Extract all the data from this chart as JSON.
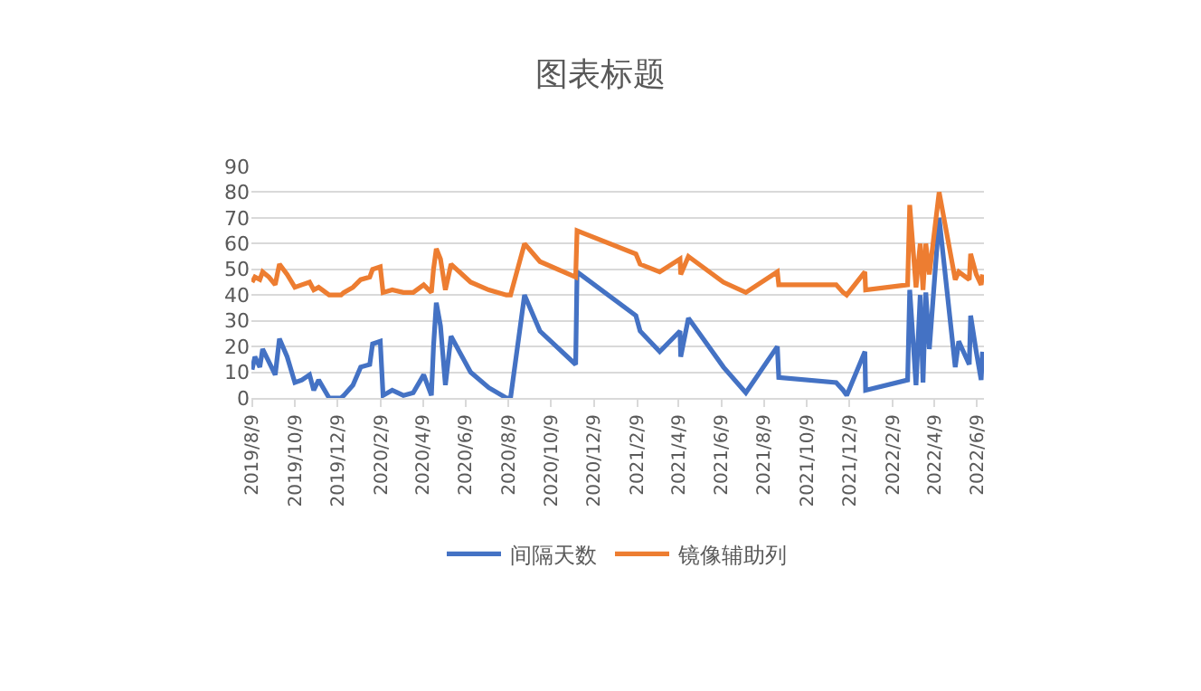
{
  "chart_data": {
    "type": "line",
    "title": "图表标题",
    "x": [
      "2019-08-09",
      "2019-08-13",
      "2019-08-20",
      "2019-08-24",
      "2019-09-02",
      "2019-09-11",
      "2019-09-17",
      "2019-09-28",
      "2019-10-09",
      "2019-10-19",
      "2019-10-30",
      "2019-11-05",
      "2019-11-12",
      "2019-11-27",
      "2019-12-14",
      "2019-12-18",
      "2019-12-31",
      "2020-01-11",
      "2020-01-24",
      "2020-01-28",
      "2020-02-08",
      "2020-02-12",
      "2020-02-25",
      "2020-03-12",
      "2020-03-26",
      "2020-04-10",
      "2020-04-21",
      "2020-04-24",
      "2020-04-28",
      "2020-05-04",
      "2020-05-11",
      "2020-05-19",
      "2020-06-16",
      "2020-07-12",
      "2020-08-06",
      "2020-08-12",
      "2020-09-01",
      "2020-09-23",
      "2020-11-13",
      "2020-11-15",
      "2021-02-07",
      "2021-02-13",
      "2021-03-13",
      "2021-04-11",
      "2021-04-12",
      "2021-04-23",
      "2021-06-12",
      "2021-07-14",
      "2021-08-28",
      "2021-08-30",
      "2021-11-20",
      "2021-11-30",
      "2021-12-05",
      "2021-12-31",
      "2022-01-01",
      "2022-03-02",
      "2022-03-05",
      "2022-03-14",
      "2022-03-20",
      "2022-03-24",
      "2022-03-28",
      "2022-04-02",
      "2022-04-16",
      "2022-05-09",
      "2022-05-14",
      "2022-05-29",
      "2022-05-31",
      "2022-06-08",
      "2022-06-15",
      "2022-06-17"
    ],
    "series": [
      {
        "name": "间隔天数",
        "color": "#4472c4",
        "values": [
          11,
          16,
          12,
          19,
          14,
          9,
          23,
          16,
          6,
          7,
          9,
          3,
          7,
          0,
          0,
          1,
          5,
          12,
          13,
          21,
          22,
          1,
          3,
          1,
          2,
          9,
          1,
          20,
          37,
          28,
          5,
          24,
          10,
          4,
          0,
          0,
          40,
          26,
          13,
          49,
          32,
          26,
          18,
          26,
          16,
          31,
          12,
          2,
          20,
          8,
          6,
          3,
          1,
          18,
          3,
          7,
          42,
          5,
          40,
          6,
          41,
          19,
          70,
          12,
          22,
          13,
          32,
          18,
          7,
          18
        ]
      },
      {
        "name": "镜像辅助列",
        "color": "#ed7d31",
        "values": [
          45,
          47,
          46,
          49,
          47,
          44,
          52,
          48,
          43,
          44,
          45,
          42,
          43,
          40,
          40,
          41,
          43,
          46,
          47,
          50,
          51,
          41,
          42,
          41,
          41,
          44,
          41,
          50,
          58,
          54,
          42,
          52,
          45,
          42,
          40,
          40,
          60,
          53,
          47,
          65,
          56,
          52,
          49,
          54,
          48,
          55,
          45,
          41,
          49,
          44,
          44,
          41,
          40,
          49,
          42,
          44,
          75,
          43,
          60,
          42,
          60,
          48,
          80,
          46,
          49,
          46,
          56,
          48,
          44,
          48
        ]
      }
    ],
    "xlim": [
      "2019-08-08",
      "2022-06-19"
    ],
    "xticks": [
      {
        "value": "2019-08-09",
        "label": "2019/8/9"
      },
      {
        "value": "2019-10-09",
        "label": "2019/10/9"
      },
      {
        "value": "2019-12-09",
        "label": "2019/12/9"
      },
      {
        "value": "2020-02-09",
        "label": "2020/2/9"
      },
      {
        "value": "2020-04-09",
        "label": "2020/4/9"
      },
      {
        "value": "2020-06-09",
        "label": "2020/6/9"
      },
      {
        "value": "2020-08-09",
        "label": "2020/8/9"
      },
      {
        "value": "2020-10-09",
        "label": "2020/10/9"
      },
      {
        "value": "2020-12-09",
        "label": "2020/12/9"
      },
      {
        "value": "2021-02-09",
        "label": "2021/2/9"
      },
      {
        "value": "2021-04-09",
        "label": "2021/4/9"
      },
      {
        "value": "2021-06-09",
        "label": "2021/6/9"
      },
      {
        "value": "2021-08-09",
        "label": "2021/8/9"
      },
      {
        "value": "2021-10-09",
        "label": "2021/10/9"
      },
      {
        "value": "2021-12-09",
        "label": "2021/12/9"
      },
      {
        "value": "2022-02-09",
        "label": "2022/2/9"
      },
      {
        "value": "2022-04-09",
        "label": "2022/4/9"
      },
      {
        "value": "2022-06-09",
        "label": "2022/6/9"
      }
    ],
    "ylim": [
      0,
      90
    ],
    "yticks": [
      0,
      10,
      20,
      30,
      40,
      50,
      60,
      70,
      80,
      90
    ],
    "grid": "y",
    "legend": "bottom",
    "marker": "none",
    "line_style": "solid"
  }
}
